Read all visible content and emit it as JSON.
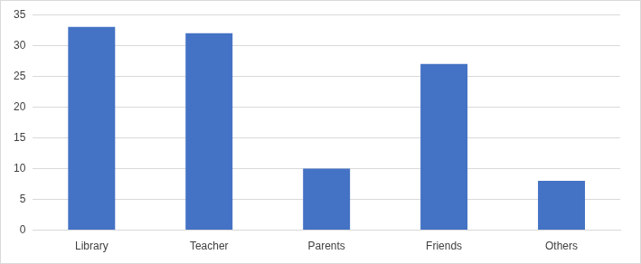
{
  "chart_data": {
    "type": "bar",
    "categories": [
      "Library",
      "Teacher",
      "Parents",
      "Friends",
      "Others"
    ],
    "values": [
      33,
      32,
      10,
      27,
      8
    ],
    "color": "#4472c4",
    "ylim": [
      0,
      35
    ],
    "yticks": [
      0,
      5,
      10,
      15,
      20,
      25,
      30,
      35
    ],
    "grid": true
  }
}
